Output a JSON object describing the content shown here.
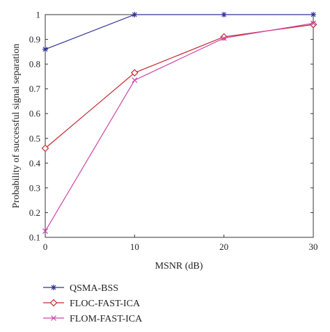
{
  "chart_data": {
    "type": "line",
    "title": "",
    "xlabel": "MSNR (dB)",
    "ylabel": "Probability of successful signal separation",
    "x": [
      0,
      10,
      20,
      30
    ],
    "xlim": [
      0,
      30
    ],
    "ylim": [
      0.1,
      1
    ],
    "xticks": [
      "0",
      "10",
      "20",
      "30"
    ],
    "yticks": [
      "0.1",
      "0.2",
      "0.3",
      "0.4",
      "0.5",
      "0.6",
      "0.7",
      "0.8",
      "0.9",
      "1"
    ],
    "grid": false,
    "legend_position": "bottom-left, below plot",
    "series": [
      {
        "name": "QSMA-BSS",
        "values": [
          0.86,
          1.0,
          1.0,
          1.0
        ],
        "color": "#2e3192",
        "marker": "asterisk"
      },
      {
        "name": "FLOC-FAST-ICA",
        "values": [
          0.46,
          0.765,
          0.91,
          0.96
        ],
        "color": "#c1272d",
        "marker": "diamond"
      },
      {
        "name": "FLOM-FAST-ICA",
        "values": [
          0.125,
          0.735,
          0.905,
          0.965
        ],
        "color": "#cc44aa",
        "marker": "x"
      }
    ]
  }
}
